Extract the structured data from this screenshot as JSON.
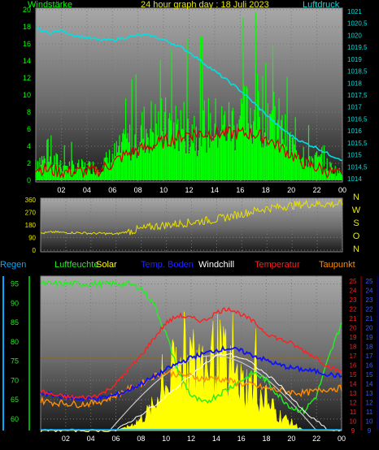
{
  "header": {
    "title": "24 hour graph day : 18 Juli 2023",
    "wind_label": "Windstärke",
    "pressure_label": "Luftdruck"
  },
  "legend": {
    "regen": "Regen",
    "luftfeuchte": "Luftfeuchte",
    "solar": "Solar",
    "temp_boden": "Temp. Boden",
    "windchill": "Windchill",
    "temperatur": "Temperatur",
    "taupunkt": "Taupunkt"
  },
  "colors": {
    "wind": "#00ff00",
    "gust": "#cc0000",
    "pressure": "#00e0e0",
    "direction": "#e8e000",
    "humidity": "#22ee22",
    "solar": "#ffff00",
    "soil": "#1010ff",
    "windchill": "#ffffff",
    "temperature": "#ff2020",
    "dewpoint": "#ff8c00",
    "rain": "#00aaff"
  },
  "chart_data": [
    {
      "type": "line",
      "title": "Windstärke / Luftdruck",
      "x_ticks": [
        "02",
        "04",
        "06",
        "08",
        "10",
        "12",
        "14",
        "16",
        "18",
        "20",
        "22",
        "00"
      ],
      "y_left_ticks": [
        "0",
        "2",
        "4",
        "6",
        "8",
        "10",
        "12",
        "14",
        "16",
        "18",
        "20"
      ],
      "y_left_range": [
        0,
        20
      ],
      "y_right_ticks": [
        "1014",
        "1014,5",
        "1015",
        "1015,5",
        "1016",
        "1016,5",
        "1017",
        "1017,5",
        "1018",
        "1018,5",
        "1019",
        "1019,5",
        "1020",
        "1020,5",
        "1021"
      ],
      "y_right_range": [
        1014,
        1021
      ],
      "series": [
        {
          "name": "Windstärke",
          "axis": "left",
          "x": [
            0,
            1,
            2,
            3,
            4,
            5,
            6,
            7,
            8,
            9,
            10,
            11,
            12,
            13,
            14,
            15,
            16,
            17,
            18,
            19,
            20,
            21,
            22,
            23,
            24
          ],
          "values": [
            3,
            3,
            2.5,
            2,
            2,
            2,
            3.5,
            5,
            7,
            8,
            8,
            8,
            8,
            8,
            8,
            8,
            9,
            10,
            11,
            8,
            5,
            4,
            3,
            2,
            1
          ]
        },
        {
          "name": "Böen",
          "axis": "left",
          "x": [
            0,
            1,
            2,
            3,
            4,
            5,
            6,
            7,
            8,
            9,
            10,
            11,
            12,
            13,
            14,
            15,
            16,
            17,
            18,
            19,
            20,
            21,
            22,
            23,
            24
          ],
          "values": [
            1.5,
            1.2,
            1,
            1,
            1,
            1.2,
            2,
            3,
            3.5,
            4,
            4.5,
            5,
            5.5,
            5.5,
            5.5,
            5.5,
            5.5,
            5.5,
            5,
            4,
            3,
            2,
            1.5,
            1,
            0.5
          ]
        },
        {
          "name": "Luftdruck",
          "axis": "right",
          "x": [
            0,
            1,
            2,
            3,
            4,
            5,
            6,
            7,
            8,
            9,
            10,
            11,
            12,
            13,
            14,
            15,
            16,
            17,
            18,
            19,
            20,
            21,
            22,
            23,
            24
          ],
          "values": [
            1020.3,
            1020.1,
            1020.2,
            1020.0,
            1019.9,
            1019.8,
            1019.8,
            1019.9,
            1020.0,
            1020.0,
            1019.8,
            1019.6,
            1019.3,
            1018.9,
            1018.5,
            1018.1,
            1017.7,
            1017.2,
            1016.7,
            1016.2,
            1015.8,
            1015.5,
            1015.3,
            1015.0,
            1014.8
          ]
        }
      ]
    },
    {
      "type": "line",
      "title": "Windrichtung",
      "x_ticks": [
        "02",
        "04",
        "06",
        "08",
        "10",
        "12",
        "14",
        "16",
        "18",
        "20",
        "22",
        "00"
      ],
      "y_ticks": [
        "0",
        "90",
        "180",
        "270",
        "360"
      ],
      "y_range": [
        0,
        360
      ],
      "compass_labels": [
        "N",
        "W",
        "S",
        "O",
        "N"
      ],
      "series": [
        {
          "name": "Windrichtung",
          "x": [
            0,
            1,
            2,
            3,
            4,
            5,
            6,
            7,
            8,
            9,
            10,
            11,
            12,
            13,
            14,
            15,
            16,
            17,
            18,
            19,
            20,
            21,
            22,
            23,
            24
          ],
          "values": [
            120,
            130,
            125,
            125,
            120,
            120,
            115,
            135,
            150,
            170,
            180,
            190,
            200,
            210,
            220,
            240,
            260,
            280,
            300,
            310,
            320,
            330,
            330,
            330,
            330
          ]
        }
      ]
    },
    {
      "type": "area",
      "title": "Luftfeuchte / Temperatur / Solar",
      "x_ticks": [
        "02",
        "04",
        "06",
        "08",
        "10",
        "12",
        "14",
        "16",
        "18",
        "20",
        "22",
        "00"
      ],
      "y_humidity_ticks": [
        "60",
        "65",
        "70",
        "75",
        "80",
        "85",
        "90",
        "95"
      ],
      "y_humidity_range": [
        57,
        97
      ],
      "y_temp_ticks": [
        "9",
        "10",
        "11",
        "12",
        "13",
        "14",
        "15",
        "16",
        "17",
        "18",
        "19",
        "20",
        "21",
        "22",
        "23",
        "24",
        "25"
      ],
      "y_temp_range": [
        9,
        25.5
      ],
      "y_temp2_ticks": [
        "9",
        "10",
        "11",
        "12",
        "13",
        "14",
        "15",
        "16",
        "17",
        "18",
        "19",
        "20",
        "21",
        "22",
        "23",
        "24",
        "25"
      ],
      "series": [
        {
          "name": "Luftfeuchte",
          "axis": "humidity",
          "x": [
            0,
            1,
            2,
            3,
            4,
            5,
            6,
            7,
            8,
            9,
            10,
            11,
            12,
            13,
            14,
            15,
            16,
            17,
            18,
            19,
            20,
            21,
            22,
            23,
            24
          ],
          "values": [
            95,
            95,
            95,
            95,
            95,
            95,
            95,
            95,
            94,
            90,
            82,
            72,
            66,
            64,
            66,
            68,
            70,
            72,
            70,
            66,
            63,
            62,
            66,
            76,
            85
          ]
        },
        {
          "name": "Solar",
          "axis": "temp",
          "x": [
            0,
            1,
            2,
            3,
            4,
            5,
            6,
            7,
            8,
            9,
            10,
            11,
            12,
            13,
            14,
            15,
            16,
            17,
            18,
            19,
            20,
            21,
            22,
            23,
            24
          ],
          "values": [
            9,
            9,
            9,
            9,
            9,
            9,
            9,
            9.5,
            10.5,
            12,
            15,
            17,
            18,
            17,
            19,
            17,
            15,
            14.5,
            13,
            11,
            10,
            9,
            9,
            9,
            9
          ]
        },
        {
          "name": "Temp. Boden",
          "axis": "temp",
          "x": [
            0,
            1,
            2,
            3,
            4,
            5,
            6,
            7,
            8,
            9,
            10,
            11,
            12,
            13,
            14,
            15,
            16,
            17,
            18,
            19,
            20,
            21,
            22,
            23,
            24
          ],
          "values": [
            13,
            12.8,
            12.6,
            12.4,
            12.4,
            12.5,
            12.8,
            13.3,
            14,
            14.7,
            15.5,
            16.2,
            16.8,
            17.2,
            17.6,
            17.8,
            17.5,
            17,
            16.5,
            16,
            15.7,
            15.5,
            15.3,
            15,
            14.8
          ]
        },
        {
          "name": "Windchill",
          "axis": "temp",
          "x": [
            0,
            6,
            9.5,
            12,
            14,
            15,
            16.5,
            19,
            21,
            23,
            24
          ],
          "values": [
            9,
            9,
            12,
            15,
            17,
            17.2,
            16.5,
            14,
            11,
            9,
            9
          ]
        },
        {
          "name": "Temperatur",
          "axis": "temp",
          "x": [
            0,
            1,
            2,
            3,
            4,
            5,
            6,
            7,
            8,
            9,
            10,
            11,
            12,
            13,
            14,
            15,
            16,
            17,
            18,
            19,
            20,
            21,
            22,
            23,
            24
          ],
          "values": [
            13.2,
            12.8,
            12.6,
            12.5,
            12.6,
            13,
            14,
            15.5,
            17,
            18.8,
            20.5,
            21.3,
            21,
            20.7,
            21.6,
            22.1,
            21.4,
            20.6,
            19.4,
            18.8,
            18.3,
            17.5,
            16.8,
            15.8,
            15.3
          ]
        },
        {
          "name": "Taupunkt",
          "axis": "temp",
          "x": [
            0,
            1,
            2,
            3,
            4,
            5,
            6,
            7,
            8,
            9,
            10,
            11,
            12,
            13,
            14,
            15,
            16,
            17,
            18,
            19,
            20,
            21,
            22,
            23,
            24
          ],
          "values": [
            12.2,
            12,
            11.9,
            11.8,
            11.9,
            12.2,
            12.8,
            13.4,
            14,
            14.8,
            15.2,
            15,
            14.8,
            14.5,
            14.6,
            14.3,
            14,
            13.8,
            13.5,
            13.3,
            13.1,
            13,
            13.2,
            13.5,
            13.5
          ]
        }
      ]
    }
  ]
}
